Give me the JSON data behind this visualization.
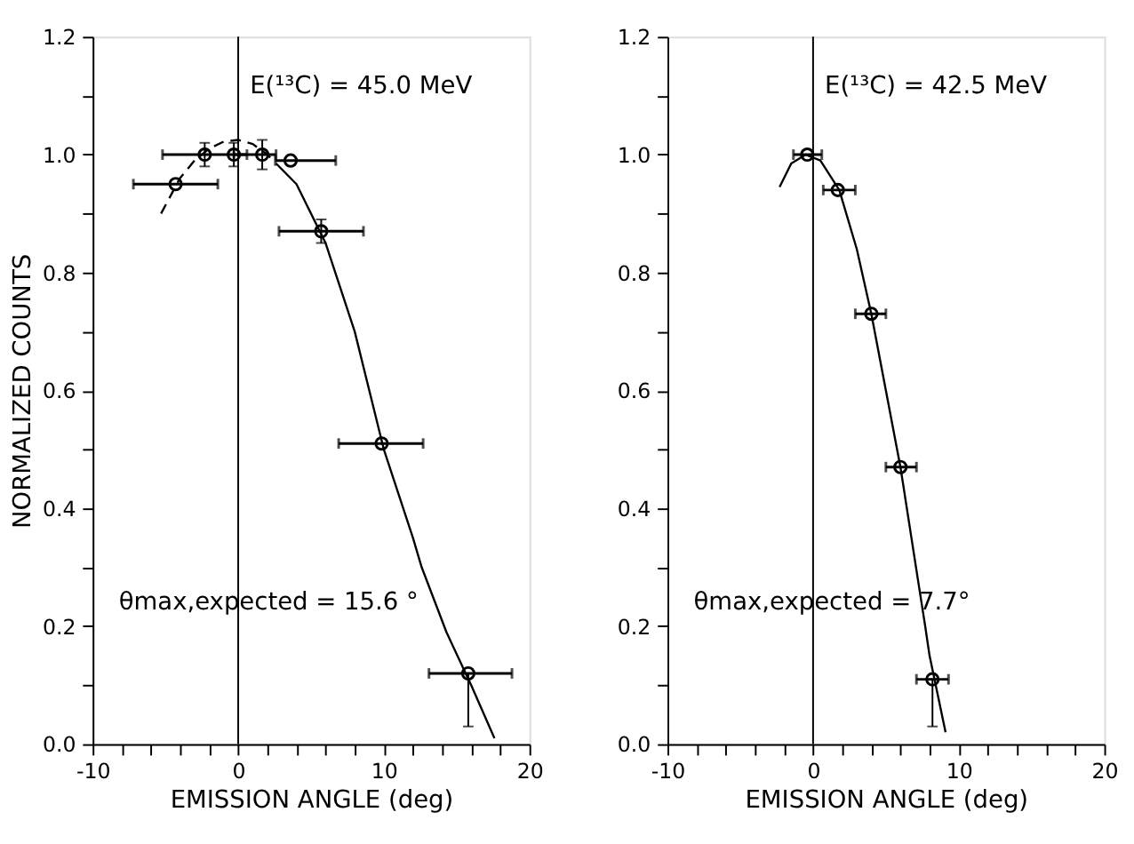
{
  "chart_data": [
    {
      "type": "scatter",
      "xlabel": "EMISSION ANGLE (deg)",
      "ylabel": "NORMALIZED COUNTS",
      "annotations": [
        "E(¹³C) = 45.0 MeV",
        "θmax,expected = 15.6 °"
      ],
      "series": [
        {
          "color": "#000000",
          "x": [
            -4.3,
            -2.3,
            -0.3,
            1.65,
            3.6,
            5.7,
            9.85,
            15.8
          ],
          "values": [
            0.95,
            1.0,
            1.0,
            1.0,
            0.99,
            0.87,
            0.51,
            0.12
          ],
          "errors": [
            null,
            0.02,
            0.02,
            0.025,
            null,
            0.02,
            null,
            [
              0.03,
              0.12
            ]
          ],
          "xerrors": [
            [
              -7.2,
              -1.4
            ],
            [
              -5.2,
              0.6
            ],
            null,
            [
              -0.3,
              2.6
            ],
            [
              2.55,
              6.7
            ],
            [
              2.8,
              8.6
            ],
            [
              6.9,
              12.7
            ],
            [
              13.1,
              18.8
            ]
          ]
        },
        {
          "type": "line",
          "line_style": "dashed",
          "marker": "none",
          "color": "#000000",
          "x": [
            -5.3,
            -4,
            -3,
            -2,
            -1,
            0,
            1,
            2,
            2.2
          ],
          "values": [
            0.9,
            0.96,
            0.99,
            1.01,
            1.022,
            1.025,
            1.018,
            1.0,
            0.995
          ]
        },
        {
          "type": "line",
          "line_style": "solid",
          "marker": "none",
          "color": "#000000",
          "x": [
            2.6,
            4,
            6,
            8,
            10,
            12,
            12.6,
            14.3,
            16,
            17.6
          ],
          "values": [
            0.985,
            0.95,
            0.85,
            0.7,
            0.5,
            0.35,
            0.3,
            0.19,
            0.1,
            0.01
          ]
        }
      ],
      "marker": "circle",
      "xlim": [
        -10,
        20
      ],
      "ylim": [
        0,
        1.2
      ],
      "xticks": [
        -10,
        {
          "value": -8,
          "label": null
        },
        {
          "value": -6,
          "label": null
        },
        {
          "value": -4,
          "label": null
        },
        {
          "value": -2,
          "label": null
        },
        0,
        {
          "value": 2,
          "label": null
        },
        {
          "value": 4,
          "label": null
        },
        {
          "value": 6,
          "label": null
        },
        {
          "value": 8,
          "label": null
        },
        10,
        {
          "value": 12,
          "label": null
        },
        {
          "value": 14,
          "label": null
        },
        {
          "value": 16,
          "label": null
        },
        {
          "value": 18,
          "label": null
        },
        20
      ],
      "yticks": [
        {
          "value": 0,
          "label": "0.0"
        },
        {
          "value": 0.1,
          "label": null
        },
        {
          "value": 0.2,
          "label": "0.2"
        },
        {
          "value": 0.3,
          "label": null
        },
        {
          "value": 0.4,
          "label": "0.4"
        },
        {
          "value": 0.5,
          "label": null
        },
        {
          "value": 0.6,
          "label": "0.6"
        },
        {
          "value": 0.7,
          "label": null
        },
        {
          "value": 0.8,
          "label": "0.8"
        },
        {
          "value": 0.9,
          "label": null
        },
        {
          "value": 1,
          "label": "1.0"
        },
        {
          "value": 1.1,
          "label": null
        },
        {
          "value": 1.2,
          "label": "1.2"
        }
      ],
      "ref_lines": [
        {
          "axis": "x",
          "value": 0,
          "color": "#000000"
        }
      ],
      "grid": false
    },
    {
      "type": "scatter",
      "xlabel": "EMISSION ANGLE (deg)",
      "annotations": [
        "E(¹³C) = 42.5 MeV",
        "θmax,expected = 7.7°"
      ],
      "series": [
        {
          "color": "#000000",
          "x": [
            -0.4,
            1.7,
            4.0,
            6.0,
            8.2
          ],
          "values": [
            1.0,
            0.94,
            0.73,
            0.47,
            0.11
          ],
          "errors": [
            null,
            null,
            null,
            null,
            [
              0.03,
              0.11
            ]
          ],
          "xerrors": [
            [
              -1.35,
              0.6
            ],
            [
              0.7,
              2.9
            ],
            [
              2.9,
              5.0
            ],
            [
              5.0,
              7.1
            ],
            [
              7.1,
              9.3
            ]
          ]
        },
        {
          "type": "line",
          "line_style": "solid",
          "marker": "none",
          "color": "#000000",
          "x": [
            -2.3,
            -1.5,
            -0.5,
            0.5,
            1.8,
            3,
            4,
            5,
            6,
            7.1,
            7.7,
            8,
            9.1
          ],
          "values": [
            0.945,
            0.985,
            1.0,
            0.99,
            0.94,
            0.84,
            0.73,
            0.6,
            0.47,
            0.295,
            0.2,
            0.15,
            0.02
          ]
        }
      ],
      "marker": "circle",
      "xlim": [
        -10,
        20
      ],
      "ylim": [
        0,
        1.2
      ],
      "xticks": [
        -10,
        {
          "value": -8,
          "label": null
        },
        {
          "value": -6,
          "label": null
        },
        {
          "value": -4,
          "label": null
        },
        {
          "value": -2,
          "label": null
        },
        0,
        {
          "value": 2,
          "label": null
        },
        {
          "value": 4,
          "label": null
        },
        {
          "value": 6,
          "label": null
        },
        {
          "value": 8,
          "label": null
        },
        10,
        {
          "value": 12,
          "label": null
        },
        {
          "value": 14,
          "label": null
        },
        {
          "value": 16,
          "label": null
        },
        {
          "value": 18,
          "label": null
        },
        20
      ],
      "yticks": [
        {
          "value": 0,
          "label": "0.0"
        },
        {
          "value": 0.1,
          "label": null
        },
        {
          "value": 0.2,
          "label": "0.2"
        },
        {
          "value": 0.3,
          "label": null
        },
        {
          "value": 0.4,
          "label": "0.4"
        },
        {
          "value": 0.5,
          "label": null
        },
        {
          "value": 0.6,
          "label": "0.6"
        },
        {
          "value": 0.7,
          "label": null
        },
        {
          "value": 0.8,
          "label": "0.8"
        },
        {
          "value": 0.9,
          "label": null
        },
        {
          "value": 1,
          "label": "1.0"
        },
        {
          "value": 1.1,
          "label": null
        },
        {
          "value": 1.2,
          "label": "1.2"
        }
      ],
      "ref_lines": [
        {
          "axis": "x",
          "value": 0,
          "color": "#000000"
        }
      ],
      "grid": false
    }
  ]
}
